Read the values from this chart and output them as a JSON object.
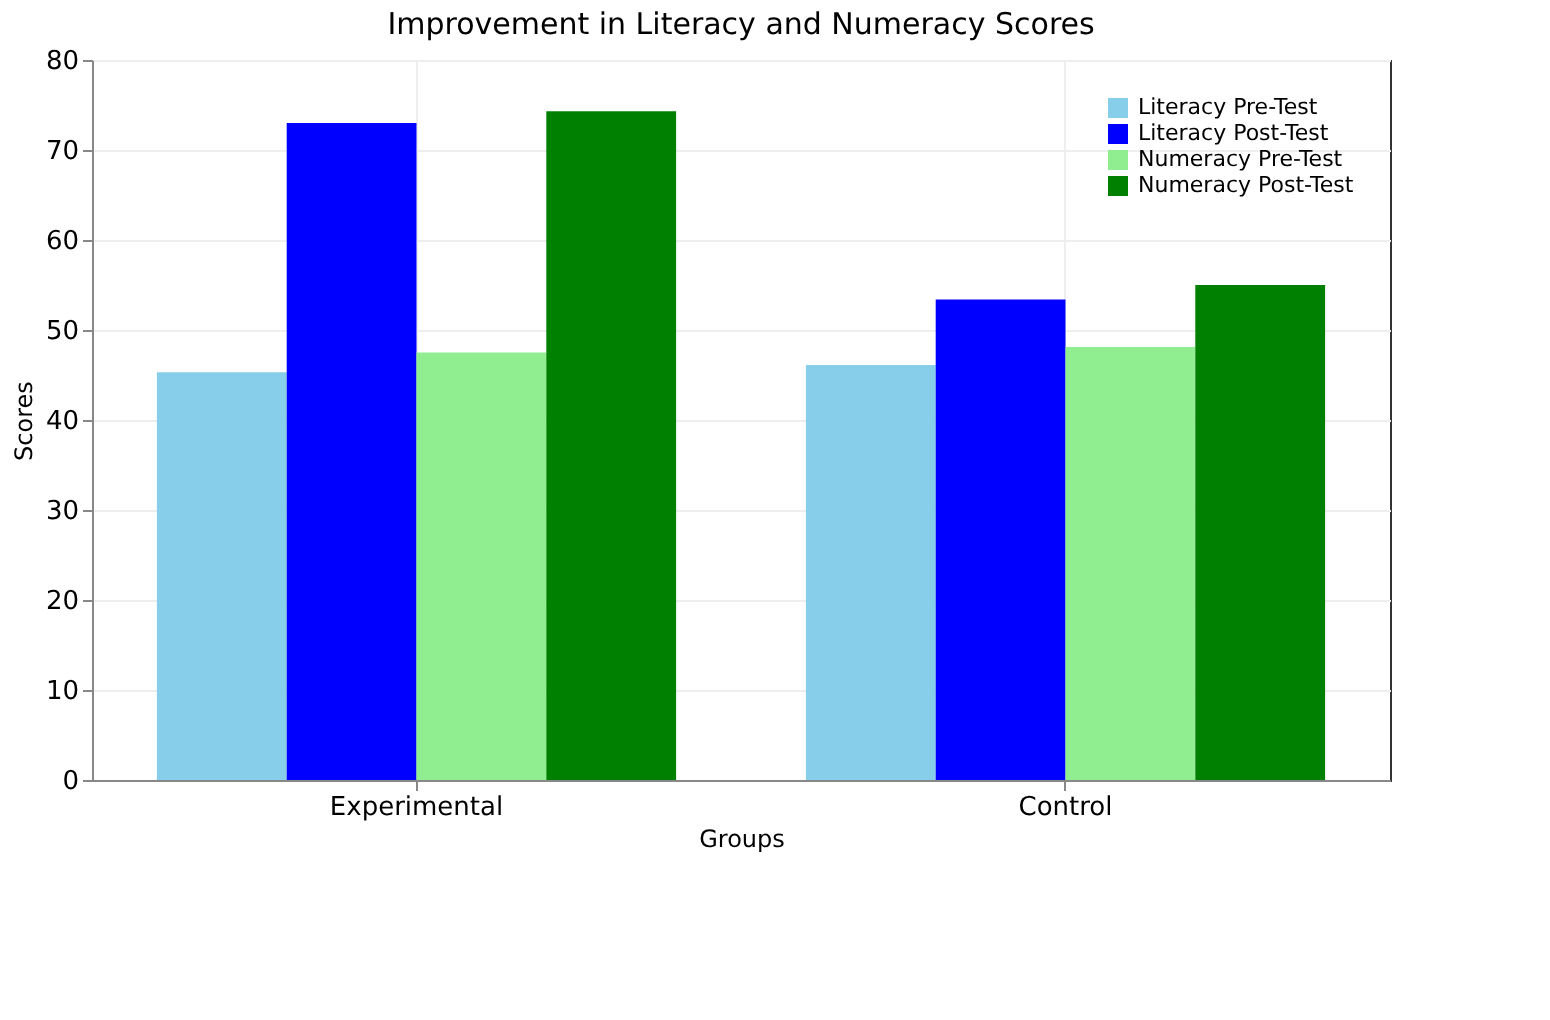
{
  "chart_data": {
    "type": "bar",
    "title": "Improvement in Literacy and Numeracy Scores",
    "xlabel": "Groups",
    "ylabel": "Scores",
    "categories": [
      "Experimental",
      "Control"
    ],
    "series": [
      {
        "name": "Literacy Pre-Test",
        "color": "#87ceeb",
        "values": [
          45.3,
          46.1
        ]
      },
      {
        "name": "Literacy Post-Test",
        "color": "#0000ff",
        "values": [
          73.0,
          53.4
        ]
      },
      {
        "name": "Numeracy Pre-Test",
        "color": "#90ee90",
        "values": [
          47.5,
          48.1
        ]
      },
      {
        "name": "Numeracy Post-Test",
        "color": "#008000",
        "values": [
          74.3,
          55.0
        ]
      }
    ],
    "ylim": [
      0,
      80
    ],
    "yticks": [
      0,
      10,
      20,
      30,
      40,
      50,
      60,
      70,
      80
    ],
    "grid": true,
    "legend": "top right"
  }
}
